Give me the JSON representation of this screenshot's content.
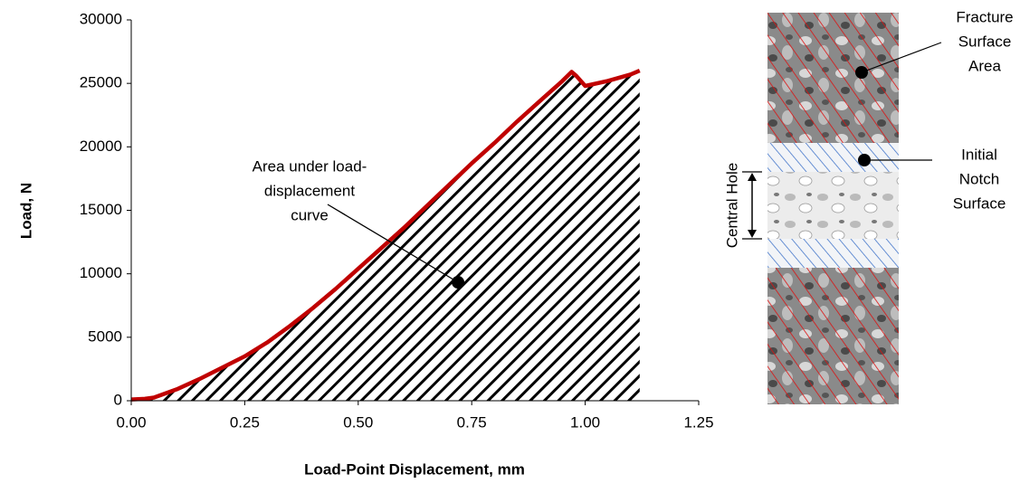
{
  "chart_data": {
    "type": "area",
    "x_label": "Load-Point Displacement, mm",
    "y_label": "Load, N",
    "x": [
      0,
      0.03,
      0.05,
      0.1,
      0.15,
      0.2,
      0.25,
      0.3,
      0.35,
      0.4,
      0.45,
      0.5,
      0.55,
      0.6,
      0.65,
      0.7,
      0.75,
      0.8,
      0.85,
      0.9,
      0.95,
      0.97,
      0.98,
      1.0,
      1.05,
      1.1,
      1.12
    ],
    "series": [
      {
        "color": "#c00000",
        "values": [
          100,
          150,
          250,
          900,
          1700,
          2600,
          3500,
          4600,
          5900,
          7300,
          8800,
          10400,
          12000,
          13600,
          15300,
          17000,
          18700,
          20300,
          22000,
          23600,
          25200,
          25900,
          25600,
          24800,
          25200,
          25700,
          26000
        ]
      }
    ],
    "xlim": [
      0,
      1.25
    ],
    "xticks": [
      {
        "value": 0,
        "label": "0.00"
      },
      {
        "value": 0.25,
        "label": "0.25"
      },
      {
        "value": 0.5,
        "label": "0.50"
      },
      {
        "value": 0.75,
        "label": "0.75"
      },
      {
        "value": 1,
        "label": "1.00"
      },
      {
        "value": 1.25,
        "label": "1.25"
      }
    ],
    "ylim": [
      0,
      30000
    ],
    "yticks": [
      0,
      5000,
      10000,
      15000,
      20000,
      25000,
      30000
    ],
    "annotations": [
      {
        "lines": [
          "Area under load-",
          "displacement",
          "curve"
        ]
      },
      {
        "lines": [
          "Fracture",
          "Surface",
          "Area"
        ]
      },
      {
        "lines": [
          "Initial",
          "Notch",
          "Surface"
        ]
      },
      {
        "lines": [
          "Central Hole"
        ]
      }
    ]
  }
}
